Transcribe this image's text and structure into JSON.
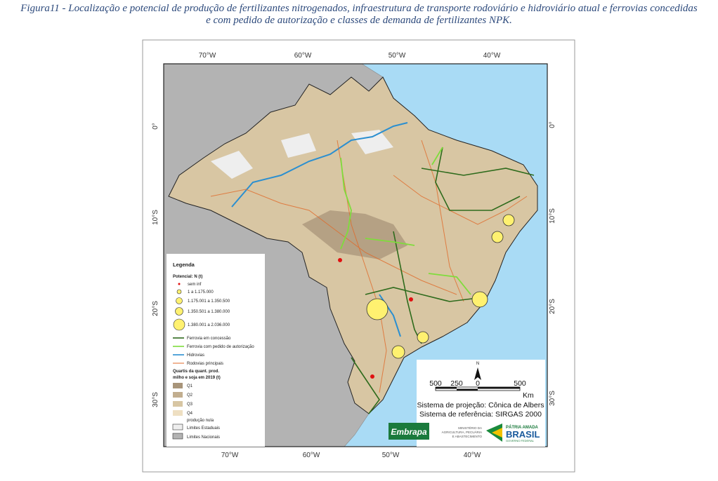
{
  "caption": [
    "Figura11 - Localização e potencial de produção de fertilizantes nitrogenados, infraestrutura de transporte rodoviário e hidroviário atual e ferrovias concedidas",
    "e com pedido de autorização e classes de demanda de fertilizantes NPK."
  ],
  "axes": {
    "top": [
      "70°W",
      "60°W",
      "50°W",
      "40°W"
    ],
    "bottom": [
      "70°W",
      "60°W",
      "50°W",
      "40°W"
    ],
    "left": [
      "0°",
      "10°S",
      "20°S",
      "30°S"
    ],
    "right": [
      "0°",
      "10°S",
      "20°S",
      "30°S"
    ]
  },
  "legend": {
    "title": "Legenda",
    "potential_title": "Potencial: N (t)",
    "potential": [
      "sem inf",
      "1 a 1.175.000",
      "1.175.001 a 1.350.500",
      "1.350.501 a 1.380.000",
      "1.380.001 a 2.036.000"
    ],
    "lines": [
      "Ferrovia em concessão",
      "Ferrovia com pedido de autorização",
      "Hidrovias",
      "Rodovias principais"
    ],
    "quartile_title": [
      "Quartis da quant. prod.",
      "milho e soja em 2019 (t)"
    ],
    "quartiles": [
      "Q1",
      "Q2",
      "Q3",
      "Q4",
      "produção nula"
    ],
    "limits": [
      "Limites Estaduais",
      "Limites Nacionais"
    ]
  },
  "scale": {
    "ticks": [
      "500",
      "250",
      "0",
      "500"
    ],
    "unit": "Km",
    "north": "N",
    "projection": "Sistema de projeção: Cônica de Albers",
    "reference": "Sistema de referência: SIRGAS 2000"
  },
  "logos": {
    "embrapa": "Embrapa",
    "ministry": [
      "MINISTÉRIO DA",
      "AGRICULTURA, PECUÁRIA",
      "E ABASTECIMENTO"
    ],
    "brasil": [
      "PÁTRIA AMADA",
      "BRASIL",
      "GOVERNO FEDERAL"
    ]
  }
}
